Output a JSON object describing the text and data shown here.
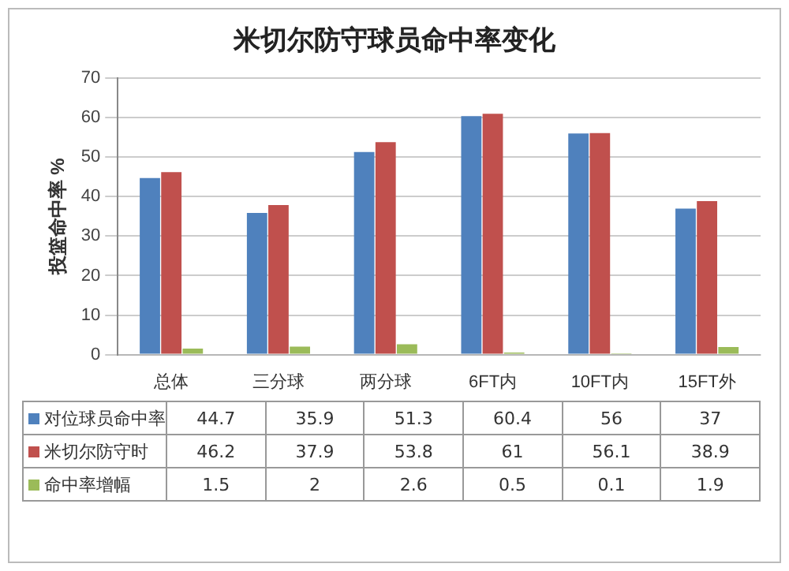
{
  "chart_data": {
    "type": "bar",
    "title": "米切尔防守球员命中率变化",
    "ylabel": "投篮命中率 %",
    "categories": [
      "总体",
      "三分球",
      "两分球",
      "6FT内",
      "10FT内",
      "15FT外"
    ],
    "series": [
      {
        "name": "对位球员命中率",
        "color": "#4f81bd",
        "values": [
          44.7,
          35.9,
          51.3,
          60.4,
          56,
          37
        ]
      },
      {
        "name": "米切尔防守时",
        "color": "#c0504d",
        "values": [
          46.2,
          37.9,
          53.8,
          61,
          56.1,
          38.9
        ]
      },
      {
        "name": "命中率增幅",
        "color": "#9bbb59",
        "values": [
          1.5,
          2,
          2.6,
          0.5,
          0.1,
          1.9
        ]
      }
    ],
    "ylim": [
      0,
      70
    ],
    "yticks": [
      0,
      10,
      20,
      30,
      40,
      50,
      60,
      70
    ],
    "grid": "y",
    "legend": "bottom",
    "data_labels": true
  }
}
